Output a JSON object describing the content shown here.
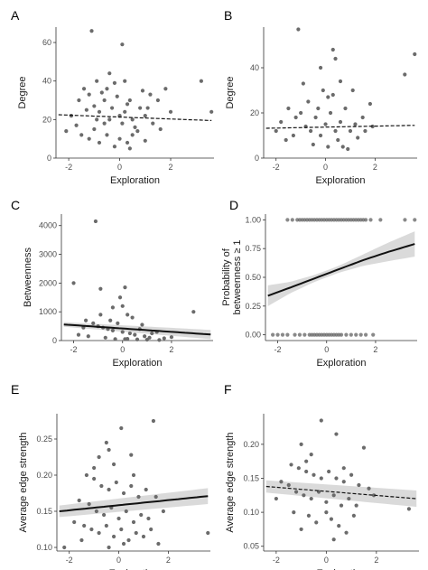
{
  "figure": {
    "background": "#ffffff",
    "point_color": "#6b6b6b",
    "line_color": "#111111",
    "band_color": "#d3d3d3"
  },
  "chart_data": [
    {
      "panel": "A",
      "type": "scatter",
      "xlabel": "Exploration",
      "ylabel": "Degree",
      "xlim": [
        -2.5,
        3.7
      ],
      "ylim": [
        0,
        68
      ],
      "xticks": [
        -2,
        0,
        2
      ],
      "yticks": [
        0,
        20,
        40,
        60
      ],
      "trend": {
        "style": "dashed",
        "x": [
          -2.4,
          3.6
        ],
        "y": [
          22.5,
          19.5
        ],
        "band": false
      },
      "points": [
        [
          -1.1,
          66
        ],
        [
          0.1,
          59
        ],
        [
          -0.2,
          39
        ],
        [
          3.2,
          40
        ],
        [
          -1.2,
          33
        ],
        [
          -0.7,
          34
        ],
        [
          -0.5,
          36
        ],
        [
          -0.9,
          40
        ],
        [
          -1.6,
          30
        ],
        [
          -1.9,
          22
        ],
        [
          -1.3,
          25
        ],
        [
          -1.0,
          27
        ],
        [
          -0.8,
          24
        ],
        [
          -0.6,
          30
        ],
        [
          -0.4,
          20
        ],
        [
          -0.3,
          26
        ],
        [
          -0.1,
          32
        ],
        [
          0.0,
          22
        ],
        [
          0.1,
          18
        ],
        [
          0.2,
          24
        ],
        [
          0.3,
          28
        ],
        [
          0.4,
          30
        ],
        [
          0.5,
          20
        ],
        [
          0.6,
          16
        ],
        [
          0.8,
          26
        ],
        [
          1.0,
          22
        ],
        [
          1.2,
          33
        ],
        [
          1.5,
          30
        ],
        [
          1.8,
          36
        ],
        [
          2.0,
          24
        ],
        [
          -1.5,
          12
        ],
        [
          -1.2,
          10
        ],
        [
          -1.0,
          15
        ],
        [
          -0.8,
          8
        ],
        [
          -0.5,
          12
        ],
        [
          -0.2,
          6
        ],
        [
          0.0,
          10
        ],
        [
          0.3,
          8
        ],
        [
          0.5,
          12
        ],
        [
          0.7,
          14
        ],
        [
          1.0,
          9
        ],
        [
          1.3,
          18
        ],
        [
          1.6,
          15
        ],
        [
          -2.1,
          14
        ],
        [
          -1.7,
          17
        ],
        [
          -0.6,
          18
        ],
        [
          0.9,
          35
        ],
        [
          0.2,
          40
        ],
        [
          -0.4,
          44
        ],
        [
          -0.9,
          20
        ],
        [
          0.4,
          5
        ],
        [
          1.1,
          26
        ],
        [
          3.6,
          24
        ],
        [
          -1.4,
          36
        ]
      ]
    },
    {
      "panel": "B",
      "type": "scatter",
      "xlabel": "Exploration",
      "ylabel": "Degree",
      "xlim": [
        -2.5,
        3.7
      ],
      "ylim": [
        0,
        58
      ],
      "xticks": [
        -2,
        0,
        2
      ],
      "yticks": [
        0,
        20,
        40
      ],
      "trend": {
        "style": "dashed",
        "x": [
          -2.4,
          3.6
        ],
        "y": [
          13.2,
          14.5
        ],
        "band": false
      },
      "points": [
        [
          -1.1,
          57
        ],
        [
          0.3,
          48
        ],
        [
          0.4,
          44
        ],
        [
          3.6,
          46
        ],
        [
          3.2,
          37
        ],
        [
          0.6,
          34
        ],
        [
          -0.9,
          33
        ],
        [
          -0.2,
          40
        ],
        [
          0.1,
          27
        ],
        [
          -1.5,
          22
        ],
        [
          -1.2,
          18
        ],
        [
          -1.0,
          20
        ],
        [
          -0.8,
          14
        ],
        [
          -0.6,
          12
        ],
        [
          -0.4,
          18
        ],
        [
          -0.2,
          10
        ],
        [
          0.0,
          15
        ],
        [
          0.2,
          20
        ],
        [
          0.4,
          12
        ],
        [
          0.6,
          16
        ],
        [
          0.8,
          22
        ],
        [
          1.0,
          12
        ],
        [
          1.2,
          15
        ],
        [
          1.5,
          18
        ],
        [
          1.8,
          24
        ],
        [
          -1.6,
          8
        ],
        [
          -1.3,
          10
        ],
        [
          -0.5,
          6
        ],
        [
          0.1,
          5
        ],
        [
          0.5,
          8
        ],
        [
          0.9,
          4
        ],
        [
          1.3,
          9
        ],
        [
          1.6,
          12
        ],
        [
          -2.0,
          12
        ],
        [
          -0.7,
          25
        ],
        [
          0.3,
          28
        ],
        [
          1.1,
          30
        ],
        [
          -1.8,
          16
        ],
        [
          -0.3,
          22
        ],
        [
          0.7,
          5
        ],
        [
          1.9,
          14
        ],
        [
          -0.1,
          30
        ]
      ]
    },
    {
      "panel": "C",
      "type": "scatter",
      "xlabel": "Exploration",
      "ylabel": "Betweenness",
      "xlim": [
        -2.5,
        3.7
      ],
      "ylim": [
        0,
        4400
      ],
      "xticks": [
        -2,
        0,
        2
      ],
      "yticks": [
        0,
        1000,
        2000,
        3000,
        4000
      ],
      "trend": {
        "style": "solid",
        "x": [
          -2.4,
          3.6
        ],
        "y": [
          560,
          210
        ],
        "band": true,
        "band_width": [
          80,
          160
        ]
      },
      "points": [
        [
          -1.1,
          4150
        ],
        [
          -2.0,
          2000
        ],
        [
          -0.9,
          1800
        ],
        [
          0.1,
          1850
        ],
        [
          -0.1,
          1500
        ],
        [
          -0.4,
          1150
        ],
        [
          0.0,
          1200
        ],
        [
          0.2,
          900
        ],
        [
          2.9,
          1000
        ],
        [
          -1.5,
          700
        ],
        [
          -1.2,
          600
        ],
        [
          -1.0,
          500
        ],
        [
          -0.8,
          450
        ],
        [
          -0.6,
          400
        ],
        [
          -0.4,
          350
        ],
        [
          -0.2,
          600
        ],
        [
          0.0,
          300
        ],
        [
          0.3,
          250
        ],
        [
          0.5,
          200
        ],
        [
          0.7,
          400
        ],
        [
          0.9,
          150
        ],
        [
          1.1,
          100
        ],
        [
          1.4,
          300
        ],
        [
          1.7,
          80
        ],
        [
          2.0,
          120
        ],
        [
          -1.8,
          200
        ],
        [
          -1.4,
          150
        ],
        [
          -0.7,
          100
        ],
        [
          -0.3,
          50
        ],
        [
          0.2,
          60
        ],
        [
          0.6,
          40
        ],
        [
          1.0,
          30
        ],
        [
          1.5,
          20
        ],
        [
          -0.5,
          700
        ],
        [
          0.4,
          800
        ],
        [
          -1.6,
          450
        ],
        [
          0.8,
          550
        ],
        [
          1.2,
          250
        ],
        [
          -0.9,
          900
        ],
        [
          0.1,
          50
        ]
      ]
    },
    {
      "panel": "D",
      "type": "scatter",
      "xlabel": "Exploration",
      "ylabel": "Probability of\nbetweenness ≥ 1",
      "xlim": [
        -2.5,
        3.7
      ],
      "ylim": [
        -0.05,
        1.05
      ],
      "xticks": [
        -2,
        0,
        2
      ],
      "yticks": [
        0.0,
        0.25,
        0.5,
        0.75,
        1.0
      ],
      "ytick_labels": [
        "0.00",
        "0.25",
        "0.50",
        "0.75",
        "1.00"
      ],
      "trend": {
        "style": "solid",
        "x": [
          -2.4,
          -1.5,
          -0.5,
          0.5,
          1.5,
          2.5,
          3.6
        ],
        "y": [
          0.34,
          0.41,
          0.49,
          0.57,
          0.65,
          0.72,
          0.79
        ],
        "band": true,
        "band_width": [
          0.09,
          0.05,
          0.03,
          0.03,
          0.05,
          0.08,
          0.11
        ]
      },
      "points_y1_x": [
        -1.6,
        -1.4,
        -1.2,
        -1.1,
        -1.0,
        -0.9,
        -0.8,
        -0.7,
        -0.6,
        -0.5,
        -0.4,
        -0.3,
        -0.2,
        -0.1,
        0.0,
        0.1,
        0.2,
        0.3,
        0.4,
        0.5,
        0.6,
        0.7,
        0.8,
        0.9,
        1.0,
        1.1,
        1.2,
        1.3,
        1.4,
        1.5,
        1.6,
        1.8,
        2.2,
        3.2,
        3.6
      ],
      "points_y0_x": [
        -2.2,
        -2.0,
        -1.8,
        -1.6,
        -1.3,
        -1.1,
        -0.9,
        -0.7,
        -0.6,
        -0.5,
        -0.4,
        -0.3,
        -0.2,
        -0.1,
        0.0,
        0.1,
        0.2,
        0.3,
        0.4,
        0.5,
        0.6,
        0.8,
        1.0,
        1.2,
        1.4,
        1.6,
        1.9
      ]
    },
    {
      "panel": "E",
      "type": "scatter",
      "xlabel": "Exploration",
      "ylabel": "Average edge strength",
      "xlim": [
        -2.5,
        3.7
      ],
      "ylim": [
        0.095,
        0.285
      ],
      "xticks": [
        -2,
        0,
        2
      ],
      "yticks": [
        0.1,
        0.15,
        0.2,
        0.25
      ],
      "ytick_labels": [
        "0.10",
        "0.15",
        "0.20",
        "0.25"
      ],
      "trend": {
        "style": "solid",
        "x": [
          -2.4,
          3.6
        ],
        "y": [
          0.15,
          0.171
        ],
        "band": true,
        "band_width": [
          0.008,
          0.011
        ]
      },
      "points": [
        [
          1.4,
          0.275
        ],
        [
          0.1,
          0.265
        ],
        [
          -0.5,
          0.245
        ],
        [
          -0.4,
          0.235
        ],
        [
          -0.8,
          0.225
        ],
        [
          0.5,
          0.228
        ],
        [
          -1.3,
          0.2
        ],
        [
          -1.0,
          0.195
        ],
        [
          -0.7,
          0.185
        ],
        [
          -0.4,
          0.18
        ],
        [
          -0.1,
          0.19
        ],
        [
          0.2,
          0.175
        ],
        [
          0.5,
          0.185
        ],
        [
          0.8,
          0.17
        ],
        [
          1.1,
          0.18
        ],
        [
          1.5,
          0.17
        ],
        [
          -1.6,
          0.165
        ],
        [
          -1.2,
          0.16
        ],
        [
          -0.9,
          0.15
        ],
        [
          -0.6,
          0.145
        ],
        [
          -0.3,
          0.155
        ],
        [
          0.0,
          0.14
        ],
        [
          0.3,
          0.15
        ],
        [
          0.6,
          0.135
        ],
        [
          0.9,
          0.145
        ],
        [
          1.2,
          0.14
        ],
        [
          1.8,
          0.15
        ],
        [
          -1.8,
          0.135
        ],
        [
          -1.4,
          0.13
        ],
        [
          -1.1,
          0.125
        ],
        [
          -0.8,
          0.12
        ],
        [
          -0.5,
          0.13
        ],
        [
          -0.2,
          0.115
        ],
        [
          0.1,
          0.125
        ],
        [
          0.4,
          0.11
        ],
        [
          0.7,
          0.12
        ],
        [
          1.0,
          0.115
        ],
        [
          1.3,
          0.125
        ],
        [
          -2.2,
          0.1
        ],
        [
          -1.5,
          0.11
        ],
        [
          -0.4,
          0.1
        ],
        [
          0.2,
          0.105
        ],
        [
          1.6,
          0.105
        ],
        [
          3.6,
          0.12
        ],
        [
          -1.0,
          0.21
        ],
        [
          0.6,
          0.2
        ],
        [
          -0.2,
          0.215
        ]
      ]
    },
    {
      "panel": "F",
      "type": "scatter",
      "xlabel": "Exploration",
      "ylabel": "Average edge strength",
      "xlim": [
        -2.5,
        3.7
      ],
      "ylim": [
        0.043,
        0.245
      ],
      "xticks": [
        -2,
        0,
        2
      ],
      "yticks": [
        0.05,
        0.1,
        0.15,
        0.2
      ],
      "ytick_labels": [
        "0.05",
        "0.10",
        "0.15",
        "0.20"
      ],
      "trend": {
        "style": "dashed",
        "x": [
          -2.4,
          3.6
        ],
        "y": [
          0.138,
          0.12
        ],
        "band": true,
        "band_width": [
          0.009,
          0.012
        ]
      },
      "points": [
        [
          -0.2,
          0.235
        ],
        [
          0.4,
          0.215
        ],
        [
          -1.0,
          0.2
        ],
        [
          -0.6,
          0.185
        ],
        [
          1.5,
          0.195
        ],
        [
          -1.4,
          0.17
        ],
        [
          -1.1,
          0.165
        ],
        [
          -0.8,
          0.16
        ],
        [
          -0.5,
          0.155
        ],
        [
          -0.2,
          0.15
        ],
        [
          0.1,
          0.16
        ],
        [
          0.4,
          0.15
        ],
        [
          0.7,
          0.145
        ],
        [
          1.0,
          0.155
        ],
        [
          1.3,
          0.14
        ],
        [
          1.7,
          0.135
        ],
        [
          -1.8,
          0.145
        ],
        [
          -1.5,
          0.14
        ],
        [
          -1.2,
          0.13
        ],
        [
          -0.9,
          0.125
        ],
        [
          -0.6,
          0.12
        ],
        [
          -0.3,
          0.13
        ],
        [
          0.0,
          0.115
        ],
        [
          0.3,
          0.125
        ],
        [
          0.6,
          0.11
        ],
        [
          0.9,
          0.12
        ],
        [
          1.2,
          0.11
        ],
        [
          -2.0,
          0.12
        ],
        [
          -1.3,
          0.1
        ],
        [
          -0.7,
          0.095
        ],
        [
          -0.4,
          0.085
        ],
        [
          0.2,
          0.09
        ],
        [
          0.5,
          0.08
        ],
        [
          0.8,
          0.07
        ],
        [
          1.1,
          0.095
        ],
        [
          3.3,
          0.105
        ],
        [
          -1.0,
          0.075
        ],
        [
          0.0,
          0.1
        ],
        [
          1.9,
          0.125
        ],
        [
          0.3,
          0.06
        ],
        [
          -0.8,
          0.175
        ],
        [
          0.7,
          0.165
        ]
      ]
    }
  ]
}
